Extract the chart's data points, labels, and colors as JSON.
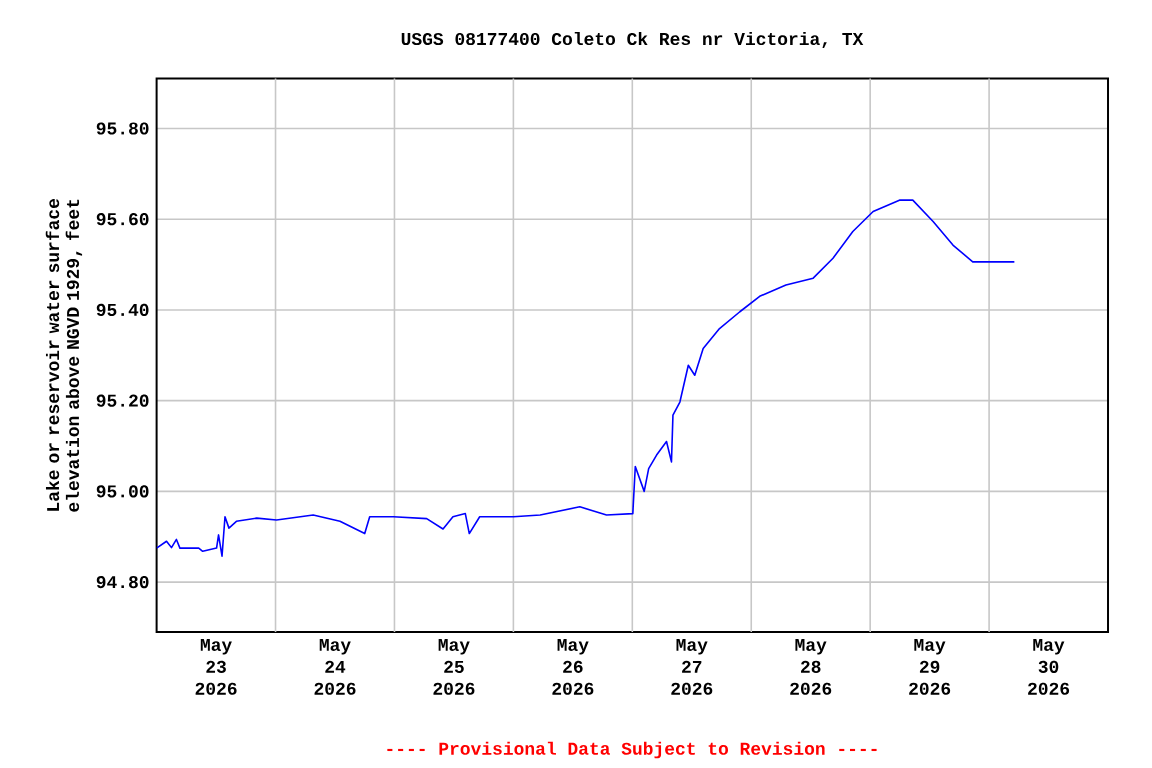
{
  "chart_data": {
    "type": "line",
    "title": "USGS 08177400 Coleto Ck Res nr Victoria, TX",
    "ylabel": "Lake or reservoir water surface elevation above NGVD 1929, feet",
    "annotations": [
      "---- Provisional Data Subject to Revision ----"
    ],
    "x": [
      "2026-05-23T00:00",
      "2026-05-23T02:00",
      "2026-05-23T03:00",
      "2026-05-23T04:00",
      "2026-05-23T04:42",
      "2026-05-23T08:30",
      "2026-05-23T09:18",
      "2026-05-23T12:06",
      "2026-05-23T12:30",
      "2026-05-23T13:12",
      "2026-05-23T13:48",
      "2026-05-23T14:36",
      "2026-05-23T16:06",
      "2026-05-23T20:12",
      "2026-05-24T00:12",
      "2026-05-24T07:36",
      "2026-05-24T13:00",
      "2026-05-24T18:00",
      "2026-05-24T19:00",
      "2026-05-24T23:48",
      "2026-05-25T06:30",
      "2026-05-25T09:48",
      "2026-05-25T11:48",
      "2026-05-25T14:18",
      "2026-05-25T15:06",
      "2026-05-25T17:12",
      "2026-05-26T00:00",
      "2026-05-26T05:24",
      "2026-05-26T13:24",
      "2026-05-26T18:48",
      "2026-05-27T00:06",
      "2026-05-27T00:36",
      "2026-05-27T02:24",
      "2026-05-27T03:18",
      "2026-05-27T04:54",
      "2026-05-27T06:54",
      "2026-05-27T07:54",
      "2026-05-27T08:12",
      "2026-05-27T09:36",
      "2026-05-27T11:18",
      "2026-05-27T12:36",
      "2026-05-27T14:18",
      "2026-05-27T17:36",
      "2026-05-27T21:42",
      "2026-05-28T01:42",
      "2026-05-28T07:00",
      "2026-05-28T12:30",
      "2026-05-28T16:30",
      "2026-05-28T20:30",
      "2026-05-29T00:36",
      "2026-05-29T05:54",
      "2026-05-29T08:36",
      "2026-05-29T12:42",
      "2026-05-29T16:42",
      "2026-05-29T20:42",
      "2026-05-30T00:48",
      "2026-05-30T05:06"
    ],
    "series": [
      {
        "color": "#0000ff",
        "values": [
          94.875,
          94.89,
          94.876,
          94.894,
          94.875,
          94.875,
          94.868,
          94.875,
          94.904,
          94.857,
          94.944,
          94.919,
          94.934,
          94.941,
          94.937,
          94.948,
          94.934,
          94.907,
          94.944,
          94.944,
          94.94,
          94.917,
          94.944,
          94.951,
          94.907,
          94.944,
          94.944,
          94.948,
          94.966,
          94.948,
          94.951,
          95.055,
          95.0,
          95.05,
          95.08,
          95.11,
          95.065,
          95.168,
          95.197,
          95.278,
          95.256,
          95.315,
          95.359,
          95.396,
          95.43,
          95.455,
          95.47,
          95.514,
          95.573,
          95.617,
          95.642,
          95.642,
          95.595,
          95.543,
          95.506,
          95.506,
          95.506
        ]
      }
    ],
    "xlim": [
      "2026-05-23T00:00",
      "2026-05-31T00:00"
    ],
    "xticks": [
      {
        "value": "2026-05-23T12:00",
        "label": "May 23 2026"
      },
      {
        "value": "2026-05-24T00:00",
        "label": null
      },
      {
        "value": "2026-05-24T12:00",
        "label": "May 24 2026"
      },
      {
        "value": "2026-05-25T00:00",
        "label": null
      },
      {
        "value": "2026-05-25T12:00",
        "label": "May 25 2026"
      },
      {
        "value": "2026-05-26T00:00",
        "label": null
      },
      {
        "value": "2026-05-26T12:00",
        "label": "May 26 2026"
      },
      {
        "value": "2026-05-27T00:00",
        "label": null
      },
      {
        "value": "2026-05-27T12:00",
        "label": "May 27 2026"
      },
      {
        "value": "2026-05-28T00:00",
        "label": null
      },
      {
        "value": "2026-05-28T12:00",
        "label": "May 28 2026"
      },
      {
        "value": "2026-05-29T00:00",
        "label": null
      },
      {
        "value": "2026-05-29T12:00",
        "label": "May 29 2026"
      },
      {
        "value": "2026-05-30T00:00",
        "label": null
      },
      {
        "value": "2026-05-30T12:00",
        "label": "May 30 2026"
      }
    ],
    "ylim": [
      94.69,
      95.91
    ],
    "yticks": [
      {
        "value": 94.8,
        "label": "94.80"
      },
      {
        "value": 95.0,
        "label": "95.00"
      },
      {
        "value": 95.2,
        "label": "95.20"
      },
      {
        "value": 95.4,
        "label": "95.40"
      },
      {
        "value": 95.6,
        "label": "95.60"
      },
      {
        "value": 95.8,
        "label": "95.80"
      }
    ],
    "grid": true
  }
}
